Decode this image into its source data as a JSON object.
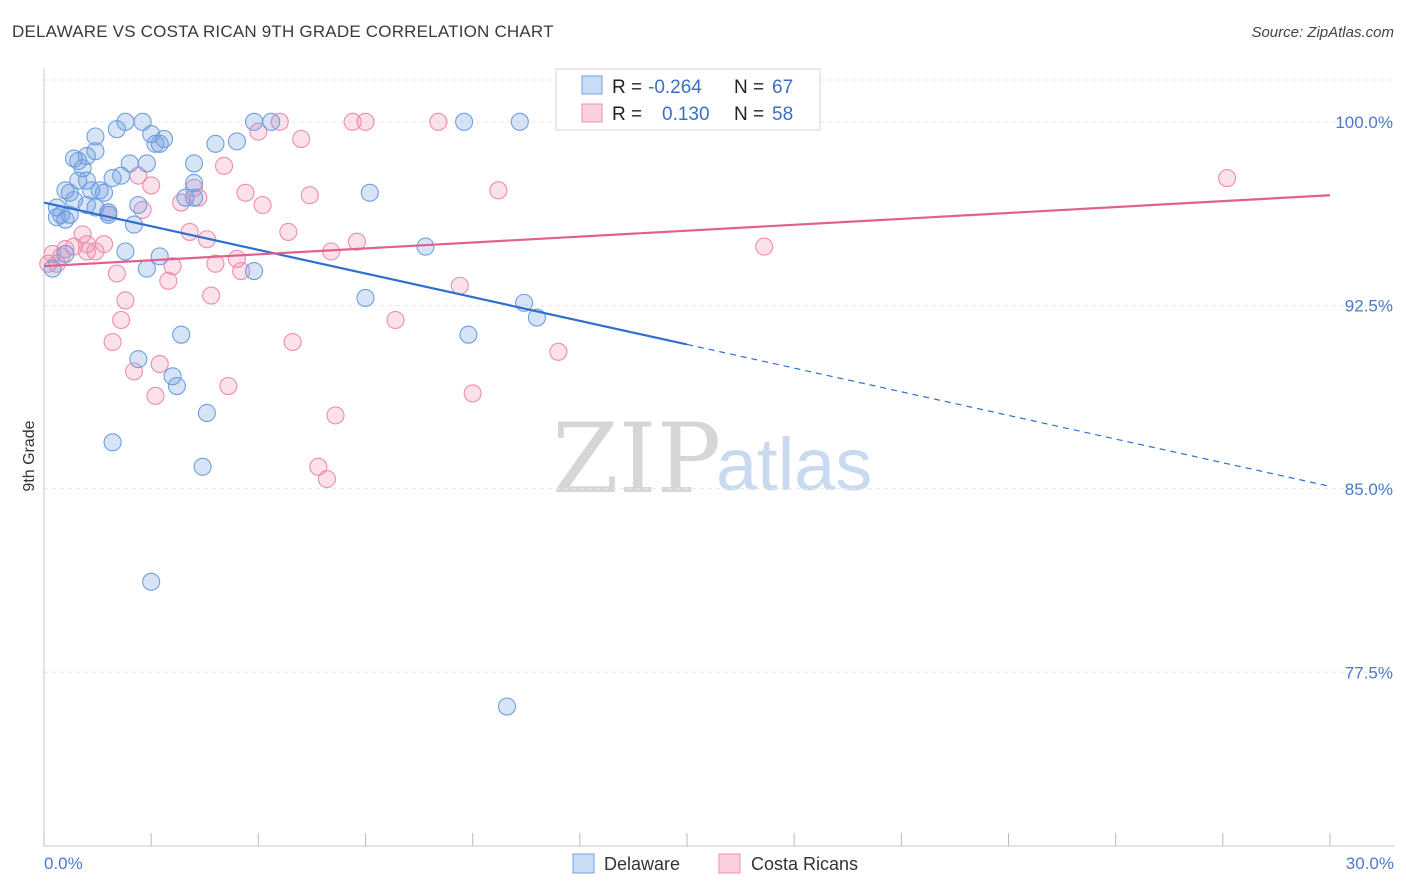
{
  "title": "DELAWARE VS COSTA RICAN 9TH GRADE CORRELATION CHART",
  "source": "Source: ZipAtlas.com",
  "watermark": {
    "zip": "ZIP",
    "atlas": "atlas"
  },
  "colors": {
    "blue": "#6f9fe0",
    "blue_line": "#2f6fd0",
    "pink": "#f08cab",
    "pink_line": "#e0608e"
  },
  "legend": {
    "r_label": "R =",
    "n_label": "N =",
    "rows": [
      {
        "r": "-0.264",
        "n": "67"
      },
      {
        "r": "0.130",
        "n": "58"
      }
    ]
  },
  "chart_data": {
    "type": "scatter",
    "title": "DELAWARE VS COSTA RICAN 9TH GRADE CORRELATION CHART",
    "xlabel": "",
    "ylabel": "9th Grade",
    "xlim": [
      0,
      30
    ],
    "ylim": [
      70.4,
      102.2
    ],
    "x_tick_labels": [
      "0.0%",
      "30.0%"
    ],
    "y_ticks": [
      100.0,
      92.5,
      85.0,
      77.5
    ],
    "y_tick_labels": [
      "100.0%",
      "92.5%",
      "85.0%",
      "77.5%"
    ],
    "legend_position": "bottom",
    "series": [
      {
        "name": "Delaware",
        "r": -0.264,
        "n": 67,
        "trend": {
          "x0": 0.0,
          "y0": 96.7,
          "x_solid_end": 15.0,
          "x1": 30.0,
          "y1": 85.1
        },
        "points": [
          [
            0.2,
            94.0
          ],
          [
            0.3,
            96.1
          ],
          [
            0.4,
            96.2
          ],
          [
            0.5,
            94.6
          ],
          [
            0.6,
            96.2
          ],
          [
            0.5,
            97.2
          ],
          [
            0.6,
            97.1
          ],
          [
            0.7,
            96.8
          ],
          [
            0.8,
            97.6
          ],
          [
            0.7,
            98.5
          ],
          [
            0.8,
            98.4
          ],
          [
            0.9,
            98.1
          ],
          [
            1.0,
            98.6
          ],
          [
            1.0,
            97.6
          ],
          [
            1.1,
            97.2
          ],
          [
            1.0,
            96.6
          ],
          [
            1.2,
            96.5
          ],
          [
            1.3,
            97.2
          ],
          [
            1.2,
            98.8
          ],
          [
            1.2,
            99.4
          ],
          [
            1.4,
            97.1
          ],
          [
            1.5,
            96.3
          ],
          [
            1.6,
            97.7
          ],
          [
            1.7,
            99.7
          ],
          [
            1.8,
            97.8
          ],
          [
            1.9,
            100.0
          ],
          [
            2.0,
            98.3
          ],
          [
            2.1,
            95.8
          ],
          [
            2.2,
            96.6
          ],
          [
            2.3,
            100.0
          ],
          [
            2.4,
            98.3
          ],
          [
            2.5,
            99.5
          ],
          [
            2.6,
            99.1
          ],
          [
            2.7,
            99.1
          ],
          [
            2.8,
            99.3
          ],
          [
            1.9,
            94.7
          ],
          [
            2.7,
            94.5
          ],
          [
            2.2,
            90.3
          ],
          [
            3.0,
            89.6
          ],
          [
            3.1,
            89.2
          ],
          [
            3.2,
            91.3
          ],
          [
            3.3,
            96.9
          ],
          [
            3.5,
            96.9
          ],
          [
            3.5,
            97.5
          ],
          [
            3.5,
            98.3
          ],
          [
            3.8,
            88.1
          ],
          [
            3.7,
            85.9
          ],
          [
            4.0,
            99.1
          ],
          [
            4.5,
            99.2
          ],
          [
            4.9,
            100.0
          ],
          [
            4.9,
            93.9
          ],
          [
            5.3,
            100.0
          ],
          [
            7.5,
            92.8
          ],
          [
            7.6,
            97.1
          ],
          [
            8.9,
            94.9
          ],
          [
            9.8,
            100.0
          ],
          [
            9.9,
            91.3
          ],
          [
            10.8,
            76.1
          ],
          [
            11.1,
            100.0
          ],
          [
            11.2,
            92.6
          ],
          [
            11.5,
            92.0
          ],
          [
            1.6,
            86.9
          ],
          [
            2.5,
            81.2
          ],
          [
            0.3,
            96.5
          ],
          [
            0.5,
            96.0
          ],
          [
            1.5,
            96.2
          ],
          [
            2.4,
            94.0
          ]
        ]
      },
      {
        "name": "Costa Ricans",
        "r": 0.13,
        "n": 58,
        "trend": {
          "x0": 0.0,
          "y0": 94.1,
          "x1": 30.0,
          "y1": 97.0
        },
        "points": [
          [
            0.1,
            94.2
          ],
          [
            0.2,
            94.6
          ],
          [
            0.4,
            94.5
          ],
          [
            0.5,
            94.8
          ],
          [
            0.7,
            94.9
          ],
          [
            0.9,
            95.4
          ],
          [
            1.0,
            94.7
          ],
          [
            1.2,
            94.7
          ],
          [
            1.4,
            95.0
          ],
          [
            1.5,
            96.3
          ],
          [
            1.6,
            91.0
          ],
          [
            1.7,
            93.8
          ],
          [
            1.8,
            91.9
          ],
          [
            1.9,
            92.7
          ],
          [
            2.1,
            89.8
          ],
          [
            2.3,
            96.4
          ],
          [
            2.5,
            97.4
          ],
          [
            2.6,
            88.8
          ],
          [
            2.7,
            90.1
          ],
          [
            2.9,
            93.5
          ],
          [
            3.0,
            94.1
          ],
          [
            3.2,
            96.7
          ],
          [
            3.4,
            95.5
          ],
          [
            3.5,
            97.3
          ],
          [
            3.6,
            96.9
          ],
          [
            3.8,
            95.2
          ],
          [
            3.9,
            92.9
          ],
          [
            4.0,
            94.2
          ],
          [
            4.2,
            98.2
          ],
          [
            4.3,
            89.2
          ],
          [
            4.5,
            94.4
          ],
          [
            4.6,
            93.9
          ],
          [
            4.7,
            97.1
          ],
          [
            5.0,
            99.6
          ],
          [
            5.1,
            96.6
          ],
          [
            5.5,
            100.0
          ],
          [
            5.7,
            95.5
          ],
          [
            5.8,
            91.0
          ],
          [
            6.0,
            99.3
          ],
          [
            6.2,
            97.0
          ],
          [
            6.4,
            85.9
          ],
          [
            6.6,
            85.4
          ],
          [
            6.7,
            94.7
          ],
          [
            6.8,
            88.0
          ],
          [
            7.2,
            100.0
          ],
          [
            7.3,
            95.1
          ],
          [
            7.5,
            100.0
          ],
          [
            8.2,
            91.9
          ],
          [
            9.2,
            100.0
          ],
          [
            9.7,
            93.3
          ],
          [
            10.0,
            88.9
          ],
          [
            10.6,
            97.2
          ],
          [
            12.0,
            90.6
          ],
          [
            16.8,
            94.9
          ],
          [
            27.6,
            97.7
          ],
          [
            2.2,
            97.8
          ],
          [
            0.3,
            94.2
          ],
          [
            1.0,
            95.0
          ]
        ]
      }
    ]
  },
  "bottom_legend": [
    {
      "label": "Delaware"
    },
    {
      "label": "Costa Ricans"
    }
  ]
}
